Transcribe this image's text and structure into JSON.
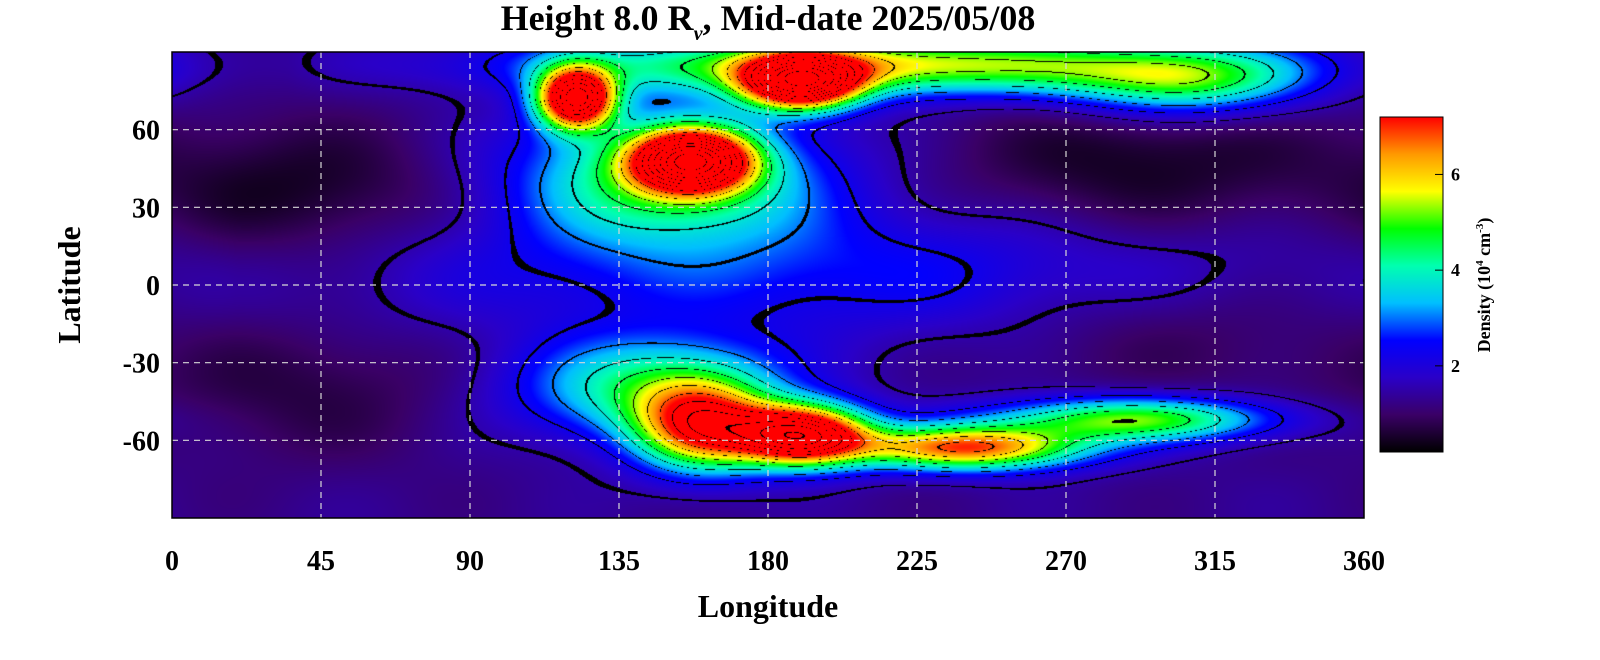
{
  "chart_data": {
    "type": "heatmap",
    "title_parts": {
      "prefix": "Height 8.0 R",
      "subscript": "ν",
      "suffix": ", Mid-date 2025/05/08"
    },
    "xlabel": "Longitude",
    "ylabel": "Latitude",
    "xlim": [
      0,
      360
    ],
    "ylim": [
      -90,
      90
    ],
    "x_ticks": [
      "0",
      "45",
      "90",
      "135",
      "180",
      "225",
      "270",
      "315",
      "360"
    ],
    "x_tick_values": [
      0,
      45,
      90,
      135,
      180,
      225,
      270,
      315,
      360
    ],
    "y_ticks": [
      "60",
      "30",
      "0",
      "-30",
      "-60"
    ],
    "y_tick_values": [
      60,
      30,
      0,
      -30,
      -60
    ],
    "grid": true,
    "colorbar": {
      "label_parts": {
        "a": "Density (10",
        "b": "4",
        "c": " cm",
        "d": "-3",
        "e": ")"
      },
      "ticks": [
        "2",
        "4",
        "6"
      ],
      "tick_values": [
        2,
        4,
        6
      ],
      "range": [
        0.2,
        7.2
      ],
      "colormap": [
        "#000000",
        "#3a0066",
        "#2a00c8",
        "#0000ff",
        "#00bfff",
        "#00ffb0",
        "#00ff00",
        "#ffff00",
        "#ff9900",
        "#ff0000"
      ]
    },
    "background_level": 1.3,
    "features": [
      {
        "name": "south-arc-core",
        "lon": 190,
        "lat": -58,
        "peak": 8.0,
        "sigma_lon": 14,
        "sigma_lat": 8
      },
      {
        "name": "south-arc-inner",
        "lon": 160,
        "lat": -55,
        "peak": 5.0,
        "sigma_lon": 14,
        "sigma_lat": 12
      },
      {
        "name": "south-arc-outer",
        "lon": 145,
        "lat": -40,
        "peak": 3.0,
        "sigma_lon": 28,
        "sigma_lat": 14
      },
      {
        "name": "south-streamer-1",
        "lon": 240,
        "lat": -63,
        "peak": 5.5,
        "sigma_lon": 25,
        "sigma_lat": 6
      },
      {
        "name": "south-streamer-2",
        "lon": 290,
        "lat": -52,
        "peak": 3.8,
        "sigma_lon": 30,
        "sigma_lat": 6
      },
      {
        "name": "north-blob-center",
        "lon": 157,
        "lat": 48,
        "peak": 8.0,
        "sigma_lon": 12,
        "sigma_lat": 8
      },
      {
        "name": "north-blob-left",
        "lon": 122,
        "lat": 72,
        "peak": 8.0,
        "sigma_lon": 8,
        "sigma_lat": 8
      },
      {
        "name": "north-blob-right",
        "lon": 190,
        "lat": 78,
        "peak": 8.0,
        "sigma_lon": 12,
        "sigma_lat": 7
      },
      {
        "name": "north-halo",
        "lon": 150,
        "lat": 42,
        "peak": 3.5,
        "sigma_lon": 32,
        "sigma_lat": 18
      },
      {
        "name": "north-band",
        "lon": 215,
        "lat": 85,
        "peak": 4.5,
        "sigma_lon": 70,
        "sigma_lat": 8
      },
      {
        "name": "north-band-east",
        "lon": 305,
        "lat": 78,
        "peak": 3.0,
        "sigma_lon": 25,
        "sigma_lat": 9
      },
      {
        "name": "equatorial-band",
        "lon": 200,
        "lat": 5,
        "peak": 1.2,
        "sigma_lon": 110,
        "sigma_lat": 18
      }
    ],
    "voids": [
      {
        "name": "dark-west",
        "lon": 40,
        "lat": 35,
        "depth": 0.9,
        "sigma_lon": 35,
        "sigma_lat": 20
      },
      {
        "name": "dark-east",
        "lon": 290,
        "lat": 45,
        "depth": 0.9,
        "sigma_lon": 40,
        "sigma_lat": 22
      },
      {
        "name": "dark-southeast",
        "lon": 300,
        "lat": -15,
        "depth": 0.6,
        "sigma_lon": 40,
        "sigma_lat": 18
      },
      {
        "name": "dark-southwest",
        "lon": 40,
        "lat": -40,
        "depth": 0.6,
        "sigma_lon": 35,
        "sigma_lat": 20
      }
    ]
  }
}
